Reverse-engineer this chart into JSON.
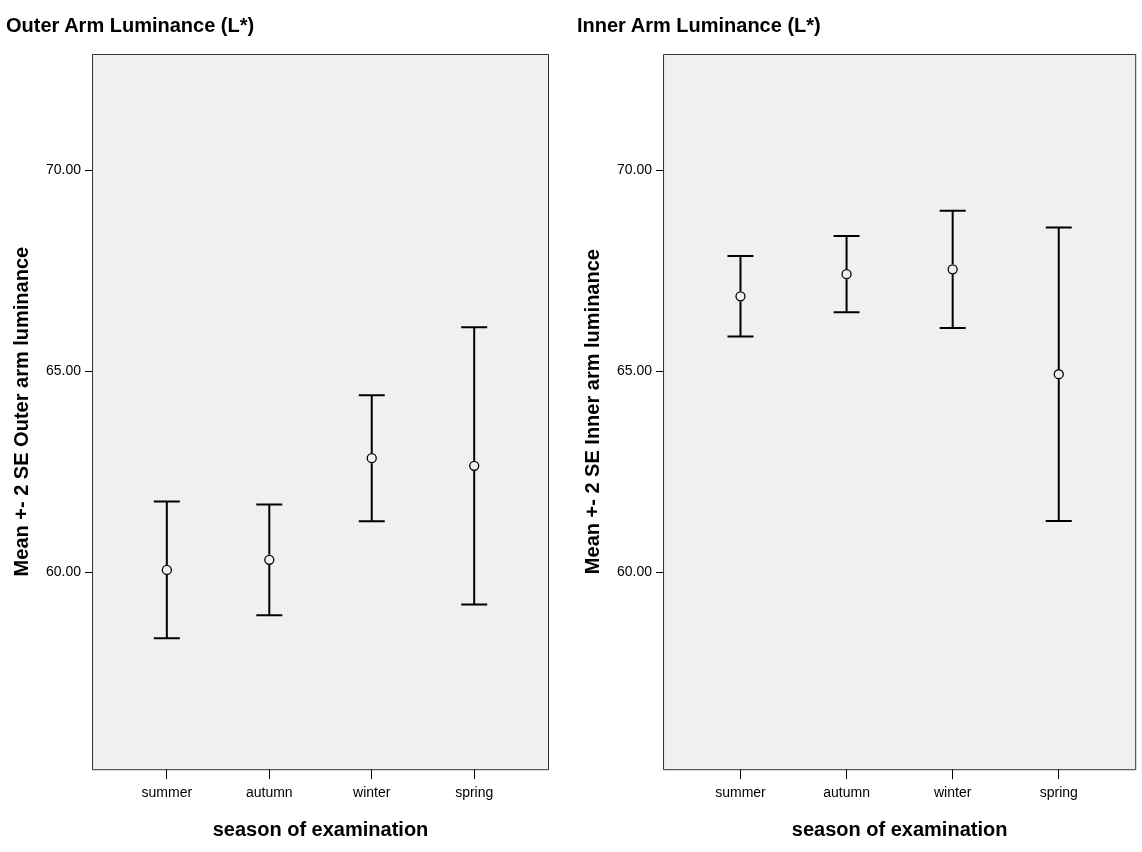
{
  "chart_data": [
    {
      "type": "scatter",
      "title": "Outer Arm Luminance (L*)",
      "xlabel": "season of examination",
      "ylabel": "Mean +- 2 SE Outer arm luminance",
      "categories": [
        "summer",
        "autumn",
        "winter",
        "spring"
      ],
      "series": [
        {
          "color": "#000000",
          "values": [
            60.06,
            60.31,
            62.84,
            62.65
          ],
          "errors": [
            1.7,
            1.38,
            1.57,
            3.45
          ]
        }
      ],
      "ylim": [
        55.1,
        72.9
      ],
      "yticks": [
        {
          "value": 60,
          "label": "60.00"
        },
        {
          "value": 65,
          "label": "65.00"
        },
        {
          "value": 70,
          "label": "70.00"
        }
      ],
      "marker": "circle",
      "grid": false,
      "legend": false
    },
    {
      "type": "scatter",
      "title": "Inner Arm Luminance (L*)",
      "xlabel": "season of examination",
      "ylabel": "Mean +- 2 SE Inner arm luminance",
      "categories": [
        "summer",
        "autumn",
        "winter",
        "spring"
      ],
      "series": [
        {
          "color": "#000000",
          "values": [
            66.87,
            67.42,
            67.54,
            64.93
          ],
          "errors": [
            1.0,
            0.95,
            1.46,
            3.65
          ]
        }
      ],
      "ylim": [
        55.1,
        72.9
      ],
      "yticks": [
        {
          "value": 60,
          "label": "60.00"
        },
        {
          "value": 65,
          "label": "65.00"
        },
        {
          "value": 70,
          "label": "70.00"
        }
      ],
      "marker": "circle",
      "grid": false,
      "legend": false
    }
  ]
}
